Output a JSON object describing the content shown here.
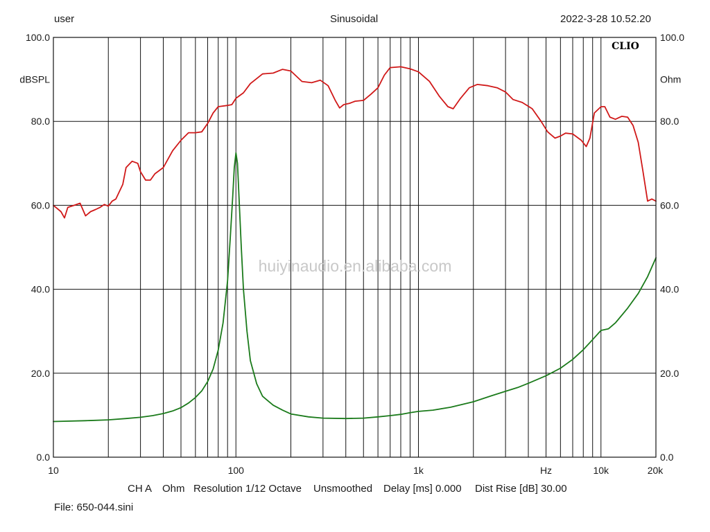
{
  "header": {
    "user": "user",
    "mode": "Sinusoidal",
    "datetime": "2022-3-28 10.52.20"
  },
  "brand": "CLIO",
  "watermark": "huiyinaudio.en.alibaba.com",
  "footer": {
    "channel": "CH A",
    "unit": "Ohm",
    "resolution": "Resolution 1/12 Octave",
    "smoothing": "Unsmoothed",
    "delay": "Delay [ms] 0.000",
    "dist_rise": "Dist Rise [dB] 30.00",
    "file": "File: 650-044.sini"
  },
  "colors": {
    "spl": "#d01818",
    "impedance": "#1a7a1a",
    "grid": "#111111",
    "text": "#1a1a1a",
    "watermark": "#c8c8c8"
  },
  "chart_data": {
    "type": "line",
    "x_scale": "log",
    "xlim": [
      10,
      20000
    ],
    "ylim": [
      0,
      100
    ],
    "grid": true,
    "left_axis_label": "dBSPL",
    "right_axis_label": "Ohm",
    "x_unit_label": "Hz",
    "x_tick_labels": [
      {
        "x": 10,
        "label": "10"
      },
      {
        "x": 100,
        "label": "100"
      },
      {
        "x": 1000,
        "label": "1k"
      },
      {
        "x": 5000,
        "label": "Hz"
      },
      {
        "x": 10000,
        "label": "10k"
      },
      {
        "x": 20000,
        "label": "20k"
      }
    ],
    "y_ticks": [
      0,
      20,
      40,
      60,
      80,
      100
    ],
    "y_tick_labels": [
      "0.0",
      "20.0",
      "40.0",
      "60.0",
      "80.0",
      "100.0"
    ],
    "series": [
      {
        "axis": "dBSPL",
        "points": [
          [
            10,
            60
          ],
          [
            11,
            58.5
          ],
          [
            11.5,
            57
          ],
          [
            12,
            59.5
          ],
          [
            13,
            60
          ],
          [
            14,
            60.5
          ],
          [
            15,
            57.5
          ],
          [
            16,
            58.5
          ],
          [
            17,
            59
          ],
          [
            18,
            59.5
          ],
          [
            19,
            60.2
          ],
          [
            20,
            59.8
          ],
          [
            21,
            61
          ],
          [
            22,
            61.5
          ],
          [
            24,
            65
          ],
          [
            25,
            69
          ],
          [
            27,
            70.5
          ],
          [
            29,
            70
          ],
          [
            30,
            68
          ],
          [
            32,
            66
          ],
          [
            34,
            66
          ],
          [
            36,
            67.5
          ],
          [
            40,
            69
          ],
          [
            45,
            73
          ],
          [
            50,
            75.5
          ],
          [
            55,
            77.3
          ],
          [
            60,
            77.3
          ],
          [
            65,
            77.5
          ],
          [
            70,
            79.5
          ],
          [
            75,
            82
          ],
          [
            80,
            83.5
          ],
          [
            90,
            83.8
          ],
          [
            95,
            84
          ],
          [
            100,
            85.5
          ],
          [
            110,
            86.8
          ],
          [
            120,
            89
          ],
          [
            140,
            91.3
          ],
          [
            160,
            91.5
          ],
          [
            180,
            92.4
          ],
          [
            200,
            92
          ],
          [
            230,
            89.5
          ],
          [
            260,
            89.2
          ],
          [
            290,
            89.8
          ],
          [
            320,
            88.5
          ],
          [
            350,
            85
          ],
          [
            370,
            83.2
          ],
          [
            390,
            84
          ],
          [
            420,
            84.3
          ],
          [
            450,
            84.8
          ],
          [
            500,
            85
          ],
          [
            550,
            86.5
          ],
          [
            600,
            88
          ],
          [
            650,
            91
          ],
          [
            700,
            92.8
          ],
          [
            800,
            93
          ],
          [
            900,
            92.5
          ],
          [
            1000,
            91.8
          ],
          [
            1150,
            89.5
          ],
          [
            1300,
            86
          ],
          [
            1450,
            83.5
          ],
          [
            1550,
            83
          ],
          [
            1700,
            85.5
          ],
          [
            1900,
            88
          ],
          [
            2100,
            88.8
          ],
          [
            2400,
            88.5
          ],
          [
            2700,
            88
          ],
          [
            3000,
            87
          ],
          [
            3300,
            85.2
          ],
          [
            3700,
            84.5
          ],
          [
            4200,
            83
          ],
          [
            4700,
            80
          ],
          [
            5100,
            77.5
          ],
          [
            5600,
            76
          ],
          [
            6000,
            76.5
          ],
          [
            6400,
            77.2
          ],
          [
            7000,
            77
          ],
          [
            7800,
            75.5
          ],
          [
            8300,
            74
          ],
          [
            8700,
            76
          ],
          [
            9200,
            82
          ],
          [
            10000,
            83.5
          ],
          [
            10500,
            83.5
          ],
          [
            11200,
            81
          ],
          [
            12000,
            80.5
          ],
          [
            13000,
            81.2
          ],
          [
            14000,
            81
          ],
          [
            15000,
            79
          ],
          [
            16000,
            75
          ],
          [
            17000,
            68
          ],
          [
            18000,
            61
          ],
          [
            19000,
            61.5
          ],
          [
            20000,
            61
          ]
        ]
      },
      {
        "axis": "Ohm",
        "points": [
          [
            10,
            8.5
          ],
          [
            15,
            8.7
          ],
          [
            20,
            8.9
          ],
          [
            25,
            9.2
          ],
          [
            30,
            9.5
          ],
          [
            35,
            9.9
          ],
          [
            40,
            10.4
          ],
          [
            45,
            11
          ],
          [
            50,
            11.8
          ],
          [
            55,
            12.9
          ],
          [
            60,
            14.2
          ],
          [
            65,
            15.8
          ],
          [
            70,
            18
          ],
          [
            75,
            21
          ],
          [
            80,
            25.5
          ],
          [
            85,
            32
          ],
          [
            90,
            42
          ],
          [
            93,
            52
          ],
          [
            96,
            62
          ],
          [
            98,
            69
          ],
          [
            100,
            72.5
          ],
          [
            102,
            70
          ],
          [
            104,
            62
          ],
          [
            107,
            50
          ],
          [
            110,
            40
          ],
          [
            115,
            30
          ],
          [
            120,
            23
          ],
          [
            130,
            17.5
          ],
          [
            140,
            14.5
          ],
          [
            160,
            12.4
          ],
          [
            180,
            11.2
          ],
          [
            200,
            10.3
          ],
          [
            250,
            9.6
          ],
          [
            300,
            9.3
          ],
          [
            400,
            9.2
          ],
          [
            500,
            9.3
          ],
          [
            600,
            9.6
          ],
          [
            700,
            9.9
          ],
          [
            800,
            10.2
          ],
          [
            900,
            10.6
          ],
          [
            1000,
            10.9
          ],
          [
            1200,
            11.2
          ],
          [
            1500,
            11.9
          ],
          [
            2000,
            13.2
          ],
          [
            2500,
            14.6
          ],
          [
            3000,
            15.7
          ],
          [
            3500,
            16.6
          ],
          [
            4000,
            17.6
          ],
          [
            5000,
            19.4
          ],
          [
            6000,
            21.2
          ],
          [
            7000,
            23.3
          ],
          [
            8000,
            25.6
          ],
          [
            9000,
            28
          ],
          [
            10000,
            30.2
          ],
          [
            11000,
            30.6
          ],
          [
            12000,
            32
          ],
          [
            14000,
            35.5
          ],
          [
            16000,
            39
          ],
          [
            18000,
            43
          ],
          [
            20000,
            47.5
          ]
        ]
      }
    ]
  }
}
